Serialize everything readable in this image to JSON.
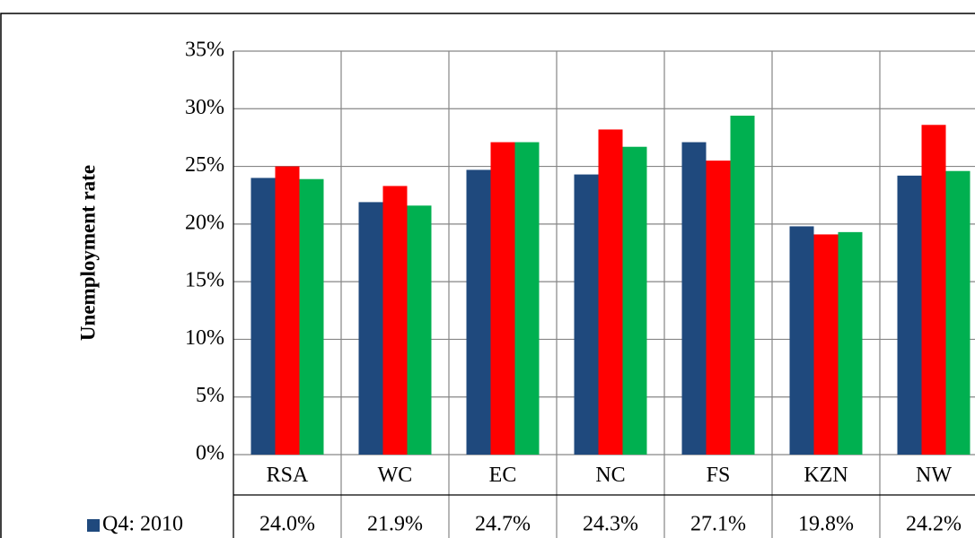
{
  "chart_data": {
    "type": "bar",
    "y_label": "Unemployment rate",
    "categories": [
      "RSA",
      "WC",
      "EC",
      "NC",
      "FS",
      "KZN",
      "NW"
    ],
    "series": [
      {
        "name": "Q4: 2010",
        "color": "#1f497d",
        "values": [
          24.0,
          21.9,
          24.7,
          24.3,
          27.1,
          19.8,
          24.2
        ],
        "value_labels": [
          "24.0%",
          "21.9%",
          "24.7%",
          "24.3%",
          "27.1%",
          "19.8%",
          "24.2%"
        ]
      },
      {
        "color": "#ff0000",
        "values": [
          25.0,
          23.3,
          27.1,
          28.2,
          25.5,
          19.1,
          28.6
        ]
      },
      {
        "color": "#00b050",
        "values": [
          23.9,
          21.6,
          27.1,
          26.7,
          29.4,
          19.3,
          24.6
        ]
      }
    ],
    "ylim": [
      0,
      35
    ],
    "yticks": [
      {
        "value": 0,
        "label": "0%"
      },
      {
        "value": 5,
        "label": "5%"
      },
      {
        "value": 10,
        "label": "10%"
      },
      {
        "value": 15,
        "label": "15%"
      },
      {
        "value": 20,
        "label": "20%"
      },
      {
        "value": 25,
        "label": "25%"
      },
      {
        "value": 30,
        "label": "30%"
      },
      {
        "value": 35,
        "label": "35%"
      }
    ],
    "grid": true
  }
}
